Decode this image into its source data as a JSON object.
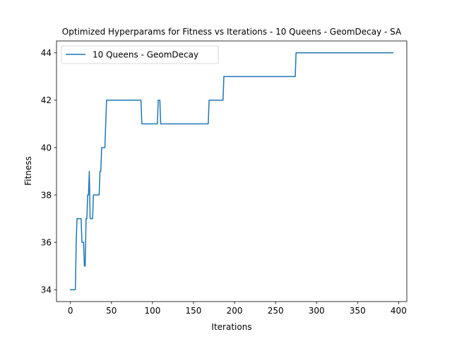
{
  "chart_data": {
    "type": "line",
    "title": "Optimized Hyperparams for Fitness vs Iterations - 10 Queens - GeomDecay - SA",
    "xlabel": "Iterations",
    "ylabel": "Fitness",
    "xlim": [
      -17,
      410
    ],
    "ylim": [
      33.5,
      44.5
    ],
    "xticks": [
      0,
      50,
      100,
      150,
      200,
      250,
      300,
      350,
      400
    ],
    "yticks": [
      34,
      36,
      38,
      40,
      42,
      44
    ],
    "grid": false,
    "legend_position": "upper left",
    "series": [
      {
        "name": "10 Queens - GeomDecay",
        "color": "#1f77b4",
        "x": [
          0,
          6,
          7,
          8,
          9,
          12,
          13,
          14,
          15,
          16,
          17,
          18,
          19,
          20,
          21,
          22,
          23,
          24,
          25,
          26,
          27,
          28,
          29,
          30,
          31,
          35,
          36,
          37,
          38,
          39,
          42,
          43,
          44,
          45,
          86,
          87,
          88,
          106,
          107,
          108,
          109,
          110,
          168,
          169,
          170,
          186,
          187,
          188,
          274,
          275,
          276,
          393
        ],
        "y": [
          34,
          34,
          36,
          37,
          37,
          37,
          37,
          36,
          36,
          36,
          35,
          35,
          37,
          37,
          38,
          38,
          39,
          37,
          37,
          37,
          37,
          38,
          38,
          38,
          38,
          38,
          39,
          39,
          40,
          40,
          40,
          41,
          42,
          42,
          42,
          41,
          41,
          41,
          42,
          42,
          42,
          41,
          41,
          42,
          42,
          42,
          43,
          43,
          43,
          44,
          44,
          44
        ]
      }
    ]
  }
}
